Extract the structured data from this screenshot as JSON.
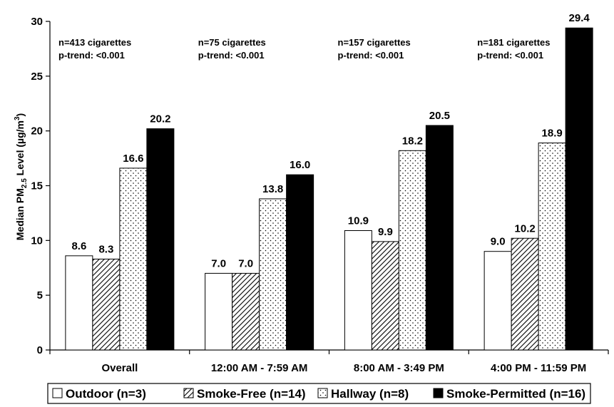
{
  "chart_data": {
    "type": "bar",
    "categories": [
      "Overall",
      "12:00 AM - 7:59 AM",
      "8:00 AM - 3:49 PM",
      "4:00 PM - 11:59 PM"
    ],
    "series": [
      {
        "name": "Outdoor (n=3)",
        "values": [
          8.6,
          7.0,
          10.9,
          9.0
        ],
        "labels": [
          "8.6",
          "7.0",
          "10.9",
          "9.0"
        ],
        "pattern": "white"
      },
      {
        "name": "Smoke-Free (n=14)",
        "values": [
          8.3,
          7.0,
          9.9,
          10.2
        ],
        "labels": [
          "8.3",
          "7.0",
          "9.9",
          "10.2"
        ],
        "pattern": "hatch"
      },
      {
        "name": "Hallway (n=8)",
        "values": [
          16.6,
          13.8,
          18.2,
          18.9
        ],
        "labels": [
          "16.6",
          "13.8",
          "18.2",
          "18.9"
        ],
        "pattern": "dots"
      },
      {
        "name": "Smoke-Permitted (n=16)",
        "values": [
          20.2,
          16.0,
          20.5,
          29.4
        ],
        "labels": [
          "20.2",
          "16.0",
          "20.5",
          "29.4"
        ],
        "pattern": "black"
      }
    ],
    "annotations": [
      {
        "line1": "n=413 cigarettes",
        "line2": "p-trend: <0.001"
      },
      {
        "line1": "n=75 cigarettes",
        "line2": "p-trend: <0.001"
      },
      {
        "line1": "n=157 cigarettes",
        "line2": "p-trend: <0.001"
      },
      {
        "line1": "n=181 cigarettes",
        "line2": "p-trend: <0.001"
      }
    ],
    "ylabel": {
      "prefix": "Median PM",
      "sub": "2.5",
      "mid": " Level (",
      "mu": "µ",
      "unit": "g/m",
      "sup": "3",
      "suffix": ")"
    },
    "yticks": [
      "0",
      "5",
      "10",
      "15",
      "20",
      "25",
      "30"
    ],
    "ylim": [
      0,
      30
    ],
    "grid": false,
    "legend_position": "bottom",
    "colors": {
      "outline": "#000000",
      "fill_black": "#000000",
      "fill_white": "#ffffff"
    }
  }
}
